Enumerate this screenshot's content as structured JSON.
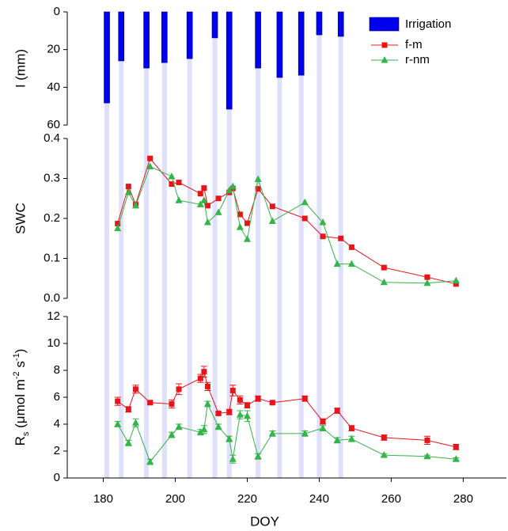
{
  "chart_data": [
    {
      "type": "bar",
      "ylabel": "I (mm)",
      "ylim": [
        0,
        60
      ],
      "y_inverted": true,
      "yticks": [
        0,
        20,
        40,
        60
      ],
      "xlim": [
        170,
        292
      ],
      "series": [
        {
          "name": "Irrigation",
          "color": "#0000ee",
          "x": [
            181,
            185,
            192,
            197,
            204,
            211,
            215,
            223,
            229,
            235,
            240,
            246
          ],
          "values": [
            48.3,
            26,
            29.8,
            26.9,
            24.8,
            13.8,
            51.6,
            29.8,
            34.8,
            33.6,
            12.2,
            13
          ]
        }
      ]
    },
    {
      "type": "line",
      "ylabel": "SWC",
      "ylim": [
        0,
        0.4
      ],
      "yticks": [
        {
          "value": 0,
          "label": "0.0"
        },
        0.1,
        0.2,
        0.3,
        0.4
      ],
      "xlim": [
        170,
        292
      ],
      "series": [
        {
          "name": "f-m",
          "color": "#e8141a",
          "marker": "square",
          "x": [
            184,
            187,
            189,
            193,
            199,
            201,
            207,
            208,
            209,
            212,
            215,
            216,
            218,
            220,
            223,
            227,
            236,
            241,
            246,
            249,
            258,
            270,
            278
          ],
          "values": [
            0.187,
            0.28,
            0.235,
            0.35,
            0.286,
            0.29,
            0.262,
            0.276,
            0.232,
            0.25,
            0.265,
            0.275,
            0.21,
            0.188,
            0.274,
            0.23,
            0.2,
            0.155,
            0.15,
            0.128,
            0.077,
            0.053,
            0.036
          ]
        },
        {
          "name": "r-nm",
          "color": "#33b54a",
          "marker": "triangle",
          "x": [
            184,
            187,
            189,
            193,
            199,
            201,
            207,
            208,
            209,
            212,
            215,
            216,
            218,
            220,
            223,
            227,
            236,
            241,
            245,
            249,
            258,
            270,
            278
          ],
          "values": [
            0.175,
            0.265,
            0.232,
            0.33,
            0.305,
            0.245,
            0.235,
            0.245,
            0.19,
            0.215,
            0.27,
            0.28,
            0.178,
            0.148,
            0.298,
            0.193,
            0.24,
            0.19,
            0.086,
            0.086,
            0.04,
            0.038,
            0.044
          ]
        }
      ]
    },
    {
      "type": "line",
      "ylabel": [
        "R",
        "s",
        " (μmol m",
        "-2",
        " s",
        "-1",
        ")"
      ],
      "ylim": [
        0,
        12
      ],
      "yticks": [
        0,
        2,
        4,
        6,
        8,
        10,
        12
      ],
      "xlim": [
        170,
        292
      ],
      "xticks": [
        180,
        200,
        220,
        240,
        260,
        280
      ],
      "xlabel": "DOY",
      "series": [
        {
          "color": "#e8141a",
          "marker": "square",
          "x": [
            184,
            187,
            189,
            193,
            199,
            201,
            207,
            208,
            209,
            212,
            215,
            216,
            218,
            220,
            223,
            227,
            236,
            241,
            245,
            249,
            258,
            270,
            278
          ],
          "values": [
            5.7,
            5.1,
            6.6,
            5.6,
            5.5,
            6.6,
            7.4,
            7.9,
            6.8,
            4.8,
            4.9,
            6.5,
            5.8,
            5.4,
            5.9,
            5.6,
            5.9,
            4.2,
            5,
            3.7,
            3,
            2.8,
            2.3
          ],
          "errors": [
            0.3,
            0.2,
            0.3,
            0.1,
            0.3,
            0.4,
            0.3,
            0.4,
            0.3,
            0.1,
            0.2,
            0.4,
            0.3,
            0.2,
            0.2,
            0.1,
            0.2,
            0.2,
            0.2,
            0.2,
            0.2,
            0.3,
            0.2
          ]
        },
        {
          "color": "#33b54a",
          "marker": "triangle",
          "x": [
            184,
            187,
            189,
            193,
            199,
            201,
            207,
            208,
            209,
            212,
            215,
            216,
            218,
            220,
            223,
            227,
            236,
            241,
            245,
            249,
            258,
            270,
            278
          ],
          "values": [
            4.0,
            2.6,
            4.1,
            1.2,
            3.2,
            3.8,
            3.4,
            3.6,
            5.5,
            3.8,
            2.9,
            1.4,
            4.7,
            4.6,
            1.6,
            3.3,
            3.3,
            3.7,
            2.8,
            2.9,
            1.7,
            1.6,
            1.4
          ],
          "errors": [
            0.2,
            0.2,
            0.3,
            0.2,
            0.2,
            0.2,
            0.2,
            0.3,
            0.2,
            0.2,
            0.2,
            0.3,
            0.3,
            0.4,
            0.2,
            0.2,
            0.2,
            0.2,
            0.2,
            0.2,
            0.1,
            0.1,
            0.1
          ]
        }
      ]
    }
  ]
}
